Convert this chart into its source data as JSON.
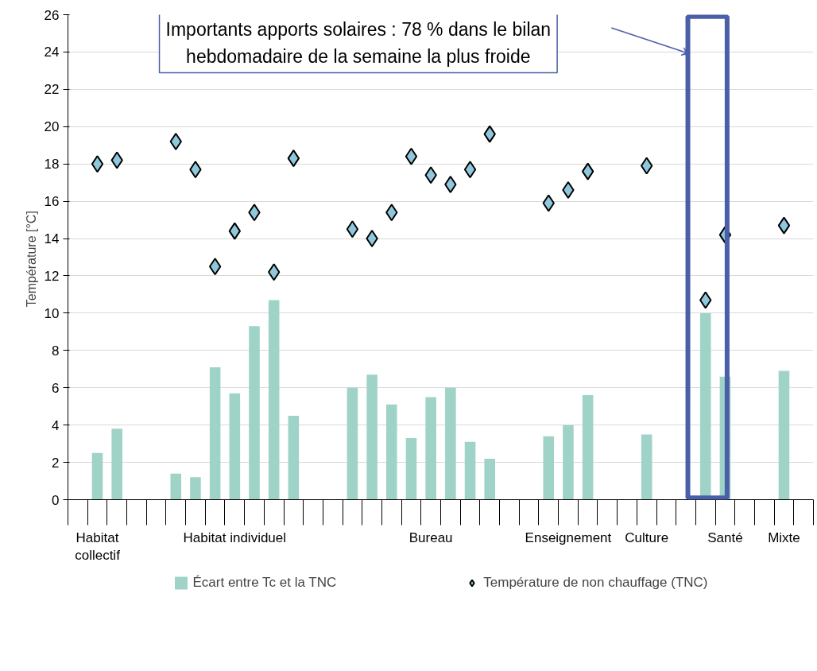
{
  "chart_data": {
    "type": "bar",
    "ylabel": "Température  [°C]",
    "categories": [
      null,
      "Habitat\ncollectif",
      null,
      null,
      null,
      null,
      null,
      null,
      "Habitat individuel",
      null,
      null,
      null,
      null,
      null,
      null,
      null,
      null,
      null,
      "Bureau",
      null,
      null,
      null,
      null,
      null,
      null,
      "Enseignement",
      null,
      null,
      null,
      "Culture",
      null,
      null,
      null,
      "Santé",
      null,
      null,
      "Mixte",
      null
    ],
    "series": [
      {
        "name": "Écart entre Tc et la TNC",
        "color": "#9fd3c7",
        "values": [
          null,
          2.5,
          3.8,
          null,
          null,
          1.4,
          1.2,
          7.1,
          5.7,
          9.3,
          10.7,
          4.5,
          null,
          null,
          6.0,
          6.7,
          5.1,
          3.3,
          5.5,
          6.0,
          3.1,
          2.2,
          null,
          null,
          3.4,
          4.0,
          5.6,
          null,
          null,
          3.5,
          null,
          null,
          10.0,
          6.6,
          null,
          null,
          6.9,
          null
        ]
      },
      {
        "name": "Température de non chauffage (TNC)",
        "type": "scatter",
        "marker": "diamond",
        "color": "#8fc8dc",
        "values": [
          null,
          18.0,
          18.2,
          null,
          null,
          19.2,
          17.7,
          12.5,
          14.4,
          15.4,
          12.2,
          18.3,
          null,
          null,
          14.5,
          14.0,
          15.4,
          18.4,
          17.4,
          16.9,
          17.7,
          19.6,
          null,
          null,
          15.9,
          16.6,
          17.6,
          null,
          null,
          17.9,
          null,
          null,
          10.7,
          14.2,
          null,
          null,
          14.7,
          null
        ]
      }
    ],
    "ylim": [
      0,
      26
    ],
    "yticks": [
      0,
      2,
      4,
      6,
      8,
      10,
      12,
      14,
      16,
      18,
      20,
      22,
      24,
      26
    ],
    "grid": "y",
    "legend": "bottom",
    "annotations": [
      "Importants apports solaires : 78 % dans le bilan hebdomadaire de la semaine la plus froide"
    ]
  }
}
